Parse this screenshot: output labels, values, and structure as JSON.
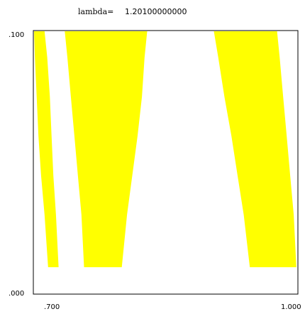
{
  "chart_data": {
    "type": "area",
    "title_label": "lambda=",
    "title_value": "1.20100000000",
    "xlabel": "",
    "ylabel": "",
    "xlim": [
      0.7,
      1.0
    ],
    "ylim": [
      0.0,
      0.1
    ],
    "x_tick_labels": [
      ".700",
      "1.000"
    ],
    "y_tick_labels": [
      ".000",
      ".100"
    ],
    "grid": false,
    "series": [
      {
        "color": "#ffff00",
        "regions": [
          {
            "x_left": [
              0.7,
              0.701,
              0.703,
              0.705,
              0.708,
              0.712,
              0.716
            ],
            "x_right": [
              0.712,
              0.715,
              0.718,
              0.72,
              0.722,
              0.725,
              0.728
            ]
          },
          {
            "x_left": [
              0.735,
              0.738,
              0.742,
              0.746,
              0.75,
              0.754,
              0.757
            ],
            "x_right": [
              0.829,
              0.826,
              0.823,
              0.818,
              0.812,
              0.806,
              0.8
            ]
          },
          {
            "x_left": [
              0.905,
              0.91,
              0.917,
              0.925,
              0.932,
              0.939,
              0.946
            ],
            "x_right": [
              0.977,
              0.98,
              0.984,
              0.988,
              0.992,
              0.996,
              0.999
            ]
          }
        ],
        "y": [
          0.1,
          0.09,
          0.075,
          0.06,
          0.045,
          0.03,
          0.01
        ]
      }
    ]
  }
}
